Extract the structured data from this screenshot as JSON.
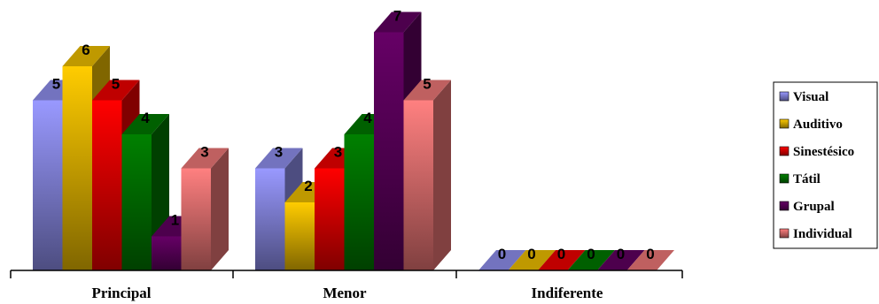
{
  "chart_data": {
    "type": "bar",
    "categories": [
      "Principal",
      "Menor",
      "Indiferente"
    ],
    "series": [
      {
        "name": "Visual",
        "values": [
          5,
          3,
          0
        ]
      },
      {
        "name": "Auditivo",
        "values": [
          6,
          2,
          0
        ]
      },
      {
        "name": "Sinestésico",
        "values": [
          5,
          3,
          0
        ]
      },
      {
        "name": "Tátil",
        "values": [
          4,
          4,
          0
        ]
      },
      {
        "name": "Grupal",
        "values": [
          1,
          7,
          0
        ]
      },
      {
        "name": "Individual",
        "values": [
          3,
          5,
          0
        ]
      }
    ],
    "title": "",
    "xlabel": "",
    "ylabel": "",
    "ylim": [
      0,
      7
    ],
    "grid": false,
    "legend": "right",
    "data_labels": true
  },
  "colors": {
    "Visual": {
      "front": "#9999FF",
      "side": "#4D4D80",
      "top": "#7373BF"
    },
    "Auditivo": {
      "front": "#FFCC00",
      "side": "#806600",
      "top": "#BF9900"
    },
    "Sinestésico": {
      "front": "#FF0000",
      "side": "#800000",
      "top": "#BF0000"
    },
    "Tátil": {
      "front": "#008000",
      "side": "#004000",
      "top": "#006000"
    },
    "Grupal": {
      "front": "#660066",
      "side": "#330033",
      "top": "#4D004D"
    },
    "Individual": {
      "front": "#FF8080",
      "side": "#804040",
      "top": "#BF6060"
    }
  }
}
